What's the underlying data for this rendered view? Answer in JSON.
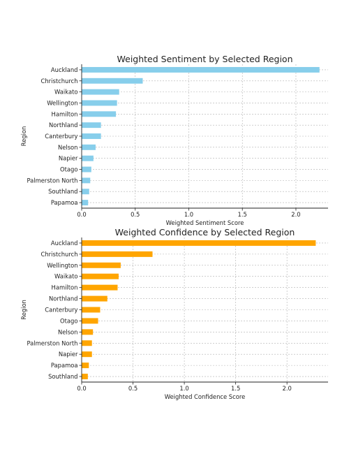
{
  "chart_data": [
    {
      "type": "bar",
      "orientation": "horizontal",
      "title": "Weighted Sentiment by Selected Region",
      "xlabel": "Weighted Sentiment Score",
      "ylabel": "Region",
      "xlim": [
        0,
        2.3
      ],
      "xticks": [
        "0.0",
        "0.5",
        "1.0",
        "1.5",
        "2.0"
      ],
      "grid": "vertical dashed",
      "color": "#87ceeb",
      "categories": [
        "Auckland",
        "Christchurch",
        "Waikato",
        "Wellington",
        "Hamilton",
        "Northland",
        "Canterbury",
        "Nelson",
        "Napier",
        "Otago",
        "Palmerston North",
        "Southland",
        "Papamoa"
      ],
      "values": [
        2.22,
        0.57,
        0.35,
        0.33,
        0.32,
        0.18,
        0.18,
        0.13,
        0.11,
        0.09,
        0.08,
        0.07,
        0.06
      ]
    },
    {
      "type": "bar",
      "orientation": "horizontal",
      "title": "Weighted Confidence by Selected Region",
      "xlabel": "Weighted Confidence Score",
      "ylabel": "Region",
      "xlim": [
        0,
        2.4
      ],
      "xticks": [
        "0.0",
        "0.5",
        "1.0",
        "1.5",
        "2.0"
      ],
      "grid": "vertical dashed",
      "color": "#ffa500",
      "categories": [
        "Auckland",
        "Christchurch",
        "Wellington",
        "Waikato",
        "Hamilton",
        "Northland",
        "Canterbury",
        "Otago",
        "Nelson",
        "Palmerston North",
        "Napier",
        "Papamoa",
        "Southland"
      ],
      "values": [
        2.28,
        0.69,
        0.38,
        0.36,
        0.35,
        0.25,
        0.18,
        0.16,
        0.11,
        0.1,
        0.1,
        0.07,
        0.06
      ]
    }
  ]
}
